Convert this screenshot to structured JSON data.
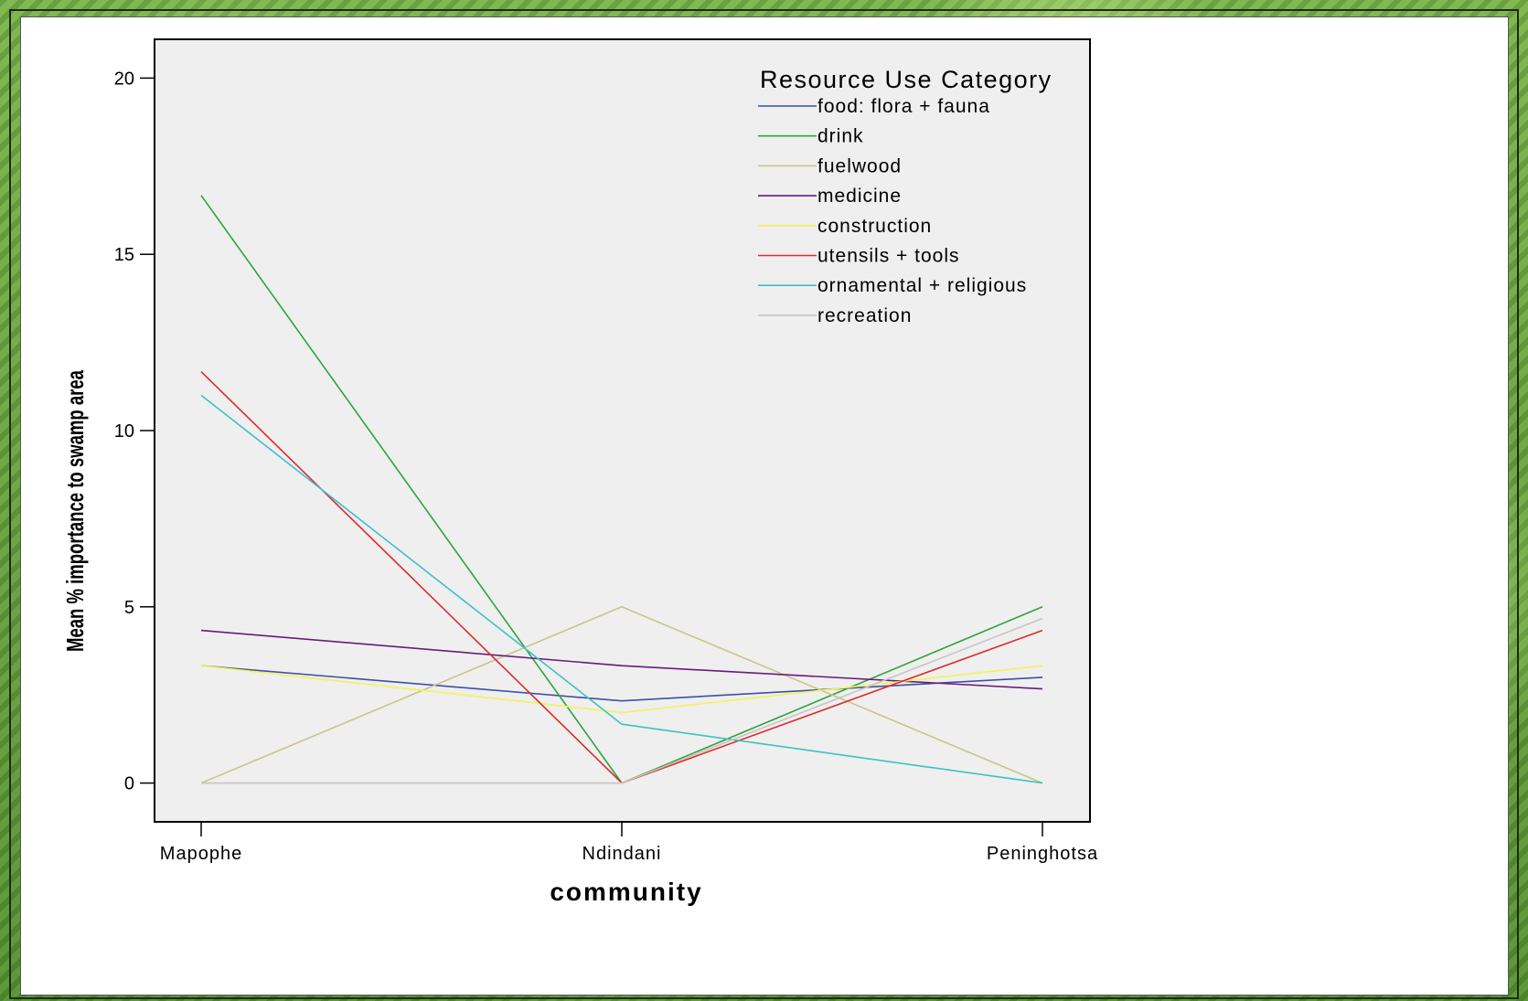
{
  "chart_data": {
    "type": "line",
    "title": "",
    "xlabel": "community",
    "ylabel": "Mean %  importance to swamp area",
    "categories": [
      "Mapophe",
      "Ndindani",
      "Peninghotsa"
    ],
    "ylim": [
      -1.1,
      21.1
    ],
    "yticks": [
      0,
      5,
      10,
      15,
      20
    ],
    "grid": false,
    "legend_title": "Resource Use Category",
    "legend_position": "top-right",
    "series": [
      {
        "name": "food: flora + fauna",
        "color": "#3c4fa8",
        "values": [
          3.33,
          2.33,
          3.0
        ]
      },
      {
        "name": "drink",
        "color": "#2ea43c",
        "values": [
          16.67,
          0,
          5.0
        ]
      },
      {
        "name": "fuelwood",
        "color": "#c9c48a",
        "values": [
          0,
          5.0,
          0
        ]
      },
      {
        "name": "medicine",
        "color": "#6a1a7a",
        "values": [
          4.33,
          3.33,
          2.67
        ]
      },
      {
        "name": "construction",
        "color": "#f4f25a",
        "values": [
          3.33,
          2.0,
          3.33
        ]
      },
      {
        "name": "utensils + tools",
        "color": "#e02a2a",
        "values": [
          11.67,
          0,
          4.33
        ]
      },
      {
        "name": "ornamental + religious",
        "color": "#3ec0c6",
        "values": [
          11.0,
          1.67,
          0
        ]
      },
      {
        "name": "recreation",
        "color": "#c9c4c4",
        "values": [
          0,
          0,
          4.67
        ]
      }
    ]
  }
}
